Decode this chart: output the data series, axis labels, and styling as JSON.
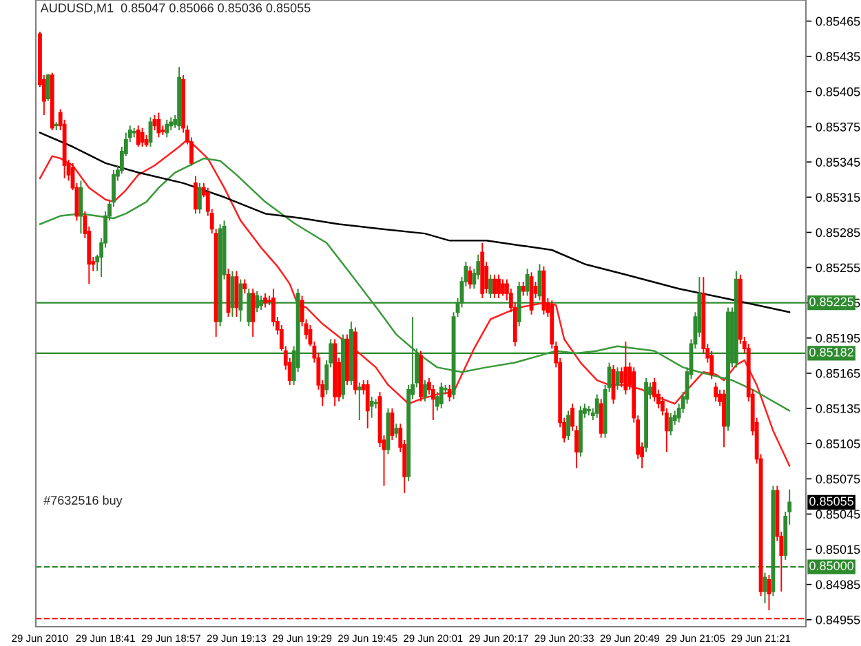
{
  "chart_data": {
    "type": "candlestick",
    "title": "AUDUSD,M1  0.85047 0.85066 0.85036 0.85055",
    "x": [
      "2010-06-29T18:25",
      "2010-06-29T18:26",
      "2010-06-29T18:27",
      "2010-06-29T18:28",
      "2010-06-29T18:29",
      "2010-06-29T18:30",
      "2010-06-29T18:31",
      "2010-06-29T18:32",
      "2010-06-29T18:33",
      "2010-06-29T18:34",
      "2010-06-29T18:35",
      "2010-06-29T18:36",
      "2010-06-29T18:37",
      "2010-06-29T18:38",
      "2010-06-29T18:39",
      "2010-06-29T18:40",
      "2010-06-29T18:41",
      "2010-06-29T18:42",
      "2010-06-29T18:43",
      "2010-06-29T18:44",
      "2010-06-29T18:45",
      "2010-06-29T18:46",
      "2010-06-29T18:47",
      "2010-06-29T18:48",
      "2010-06-29T18:49",
      "2010-06-29T18:50",
      "2010-06-29T18:51",
      "2010-06-29T18:52",
      "2010-06-29T18:53",
      "2010-06-29T18:54",
      "2010-06-29T18:55",
      "2010-06-29T18:56",
      "2010-06-29T18:57",
      "2010-06-29T18:58",
      "2010-06-29T18:59",
      "2010-06-29T19:00",
      "2010-06-29T19:01",
      "2010-06-29T19:02",
      "2010-06-29T19:03",
      "2010-06-29T19:04",
      "2010-06-29T19:05",
      "2010-06-29T19:06",
      "2010-06-29T19:07",
      "2010-06-29T19:08",
      "2010-06-29T19:09",
      "2010-06-29T19:10",
      "2010-06-29T19:11",
      "2010-06-29T19:12",
      "2010-06-29T19:13",
      "2010-06-29T19:14",
      "2010-06-29T19:15",
      "2010-06-29T19:16",
      "2010-06-29T19:17",
      "2010-06-29T19:18",
      "2010-06-29T19:19",
      "2010-06-29T19:20",
      "2010-06-29T19:21",
      "2010-06-29T19:22",
      "2010-06-29T19:23",
      "2010-06-29T19:24",
      "2010-06-29T19:25",
      "2010-06-29T19:26",
      "2010-06-29T19:27",
      "2010-06-29T19:28",
      "2010-06-29T19:29",
      "2010-06-29T19:30",
      "2010-06-29T19:31",
      "2010-06-29T19:32",
      "2010-06-29T19:33",
      "2010-06-29T19:34",
      "2010-06-29T19:35",
      "2010-06-29T19:36",
      "2010-06-29T19:37",
      "2010-06-29T19:38",
      "2010-06-29T19:39",
      "2010-06-29T19:40",
      "2010-06-29T19:41",
      "2010-06-29T19:42",
      "2010-06-29T19:43",
      "2010-06-29T19:44",
      "2010-06-29T19:45",
      "2010-06-29T19:46",
      "2010-06-29T19:47",
      "2010-06-29T19:48",
      "2010-06-29T19:49",
      "2010-06-29T19:50",
      "2010-06-29T19:51",
      "2010-06-29T19:52",
      "2010-06-29T19:53",
      "2010-06-29T19:54",
      "2010-06-29T19:55",
      "2010-06-29T19:56",
      "2010-06-29T19:57",
      "2010-06-29T19:58",
      "2010-06-29T19:59",
      "2010-06-29T20:00",
      "2010-06-29T20:01",
      "2010-06-29T20:02",
      "2010-06-29T20:03",
      "2010-06-29T20:04",
      "2010-06-29T20:05",
      "2010-06-29T20:06",
      "2010-06-29T20:07",
      "2010-06-29T20:08",
      "2010-06-29T20:09",
      "2010-06-29T20:10",
      "2010-06-29T20:11",
      "2010-06-29T20:12",
      "2010-06-29T20:13",
      "2010-06-29T20:14",
      "2010-06-29T20:15",
      "2010-06-29T20:16",
      "2010-06-29T20:17",
      "2010-06-29T20:18",
      "2010-06-29T20:19",
      "2010-06-29T20:20",
      "2010-06-29T20:21",
      "2010-06-29T20:22",
      "2010-06-29T20:23",
      "2010-06-29T20:24",
      "2010-06-29T20:25",
      "2010-06-29T20:26",
      "2010-06-29T20:27",
      "2010-06-29T20:28",
      "2010-06-29T20:29",
      "2010-06-29T20:30",
      "2010-06-29T20:31",
      "2010-06-29T20:32",
      "2010-06-29T20:33",
      "2010-06-29T20:34",
      "2010-06-29T20:35",
      "2010-06-29T20:36",
      "2010-06-29T20:37",
      "2010-06-29T20:38",
      "2010-06-29T20:39",
      "2010-06-29T20:40",
      "2010-06-29T20:41",
      "2010-06-29T20:42",
      "2010-06-29T20:43",
      "2010-06-29T20:44",
      "2010-06-29T20:45",
      "2010-06-29T20:46",
      "2010-06-29T20:47",
      "2010-06-29T20:48",
      "2010-06-29T20:49",
      "2010-06-29T20:50",
      "2010-06-29T20:51",
      "2010-06-29T20:52",
      "2010-06-29T20:53",
      "2010-06-29T20:54",
      "2010-06-29T20:55",
      "2010-06-29T20:56",
      "2010-06-29T20:57",
      "2010-06-29T20:58",
      "2010-06-29T20:59",
      "2010-06-29T21:00",
      "2010-06-29T21:01",
      "2010-06-29T21:02",
      "2010-06-29T21:03",
      "2010-06-29T21:04",
      "2010-06-29T21:05",
      "2010-06-29T21:06",
      "2010-06-29T21:07",
      "2010-06-29T21:08",
      "2010-06-29T21:09",
      "2010-06-29T21:10",
      "2010-06-29T21:11",
      "2010-06-29T21:12",
      "2010-06-29T21:13",
      "2010-06-29T21:14",
      "2010-06-29T21:15",
      "2010-06-29T21:16",
      "2010-06-29T21:17",
      "2010-06-29T21:18",
      "2010-06-29T21:19",
      "2010-06-29T21:20",
      "2010-06-29T21:21",
      "2010-06-29T21:22",
      "2010-06-29T21:23",
      "2010-06-29T21:24",
      "2010-06-29T21:25",
      "2010-06-29T21:26",
      "2010-06-29T21:27",
      "2010-06-29T21:28"
    ],
    "ohlc": [
      [
        0.85454,
        0.85456,
        0.85409,
        0.85411
      ],
      [
        0.85415,
        0.85419,
        0.85385,
        0.85397
      ],
      [
        0.85399,
        0.8542,
        0.85397,
        0.85419
      ],
      [
        0.85419,
        0.85421,
        0.85372,
        0.85374
      ],
      [
        0.85376,
        0.85379,
        0.85372,
        0.85377
      ],
      [
        0.85387,
        0.8539,
        0.85372,
        0.85376
      ],
      [
        0.85377,
        0.85381,
        0.85331,
        0.85342
      ],
      [
        0.85344,
        0.85347,
        0.85329,
        0.85334
      ],
      [
        0.8534,
        0.85344,
        0.85321,
        0.85323
      ],
      [
        0.85323,
        0.85327,
        0.85295,
        0.85299
      ],
      [
        0.85299,
        0.85329,
        0.85284,
        0.85323
      ],
      [
        0.85299,
        0.85303,
        0.8528,
        0.85284
      ],
      [
        0.85286,
        0.8529,
        0.85241,
        0.85258
      ],
      [
        0.8526,
        0.85264,
        0.85252,
        0.85258
      ],
      [
        0.8526,
        0.85266,
        0.85252,
        0.85264
      ],
      [
        0.85264,
        0.8528,
        0.85247,
        0.85276
      ],
      [
        0.85276,
        0.85303,
        0.85272,
        0.85299
      ],
      [
        0.85299,
        0.85313,
        0.85295,
        0.85309
      ],
      [
        0.85311,
        0.85338,
        0.85307,
        0.85334
      ],
      [
        0.85333,
        0.85342,
        0.85329,
        0.85338
      ],
      [
        0.85338,
        0.85358,
        0.85335,
        0.85354
      ],
      [
        0.85352,
        0.8537,
        0.8535,
        0.85364
      ],
      [
        0.85366,
        0.85376,
        0.85362,
        0.85372
      ],
      [
        0.8537,
        0.85374,
        0.85366,
        0.85371
      ],
      [
        0.85372,
        0.85376,
        0.85358,
        0.8536
      ],
      [
        0.8537,
        0.85374,
        0.85358,
        0.85362
      ],
      [
        0.85364,
        0.85368,
        0.85358,
        0.8536
      ],
      [
        0.85362,
        0.85383,
        0.85358,
        0.85379
      ],
      [
        0.85381,
        0.85385,
        0.85372,
        0.85376
      ],
      [
        0.85381,
        0.85387,
        0.85366,
        0.8537
      ],
      [
        0.85372,
        0.85376,
        0.85368,
        0.85371
      ],
      [
        0.8537,
        0.85381,
        0.85366,
        0.85377
      ],
      [
        0.85376,
        0.85383,
        0.85372,
        0.85379
      ],
      [
        0.85377,
        0.85385,
        0.85374,
        0.85381
      ],
      [
        0.85376,
        0.85426,
        0.85372,
        0.85417
      ],
      [
        0.85415,
        0.85419,
        0.8537,
        0.85374
      ],
      [
        0.85372,
        0.85376,
        0.8536,
        0.85362
      ],
      [
        0.85362,
        0.85366,
        0.85342,
        0.85344
      ],
      [
        0.85327,
        0.85333,
        0.85301,
        0.85305
      ],
      [
        0.85305,
        0.85327,
        0.85301,
        0.85323
      ],
      [
        0.85323,
        0.85327,
        0.85315,
        0.85317
      ],
      [
        0.85319,
        0.85323,
        0.85299,
        0.85303
      ],
      [
        0.85301,
        0.85305,
        0.85284,
        0.85288
      ],
      [
        0.85284,
        0.85288,
        0.85196,
        0.85209
      ],
      [
        0.85209,
        0.85292,
        0.85205,
        0.85288
      ],
      [
        0.85249,
        0.85295,
        0.85245,
        0.8529
      ],
      [
        0.85249,
        0.85254,
        0.85213,
        0.85217
      ],
      [
        0.85221,
        0.85252,
        0.85213,
        0.85247
      ],
      [
        0.85247,
        0.85252,
        0.85213,
        0.85221
      ],
      [
        0.85219,
        0.85245,
        0.85209,
        0.85241
      ],
      [
        0.85241,
        0.85245,
        0.85233,
        0.85237
      ],
      [
        0.85209,
        0.85237,
        0.85205,
        0.85233
      ],
      [
        0.85233,
        0.85237,
        0.85196,
        0.85209
      ],
      [
        0.85221,
        0.85235,
        0.85217,
        0.85231
      ],
      [
        0.85223,
        0.85231,
        0.85219,
        0.85227
      ],
      [
        0.85229,
        0.85233,
        0.85221,
        0.85225
      ],
      [
        0.85227,
        0.85231,
        0.85223,
        0.85226
      ],
      [
        0.85229,
        0.85237,
        0.85205,
        0.85209
      ],
      [
        0.85209,
        0.85213,
        0.85198,
        0.85202
      ],
      [
        0.85202,
        0.85206,
        0.85184,
        0.85186
      ],
      [
        0.85184,
        0.85188,
        0.85168,
        0.85172
      ],
      [
        0.85174,
        0.85178,
        0.85155,
        0.85159
      ],
      [
        0.85159,
        0.85188,
        0.85155,
        0.85184
      ],
      [
        0.8517,
        0.85237,
        0.85166,
        0.85233
      ],
      [
        0.85227,
        0.85231,
        0.85205,
        0.85209
      ],
      [
        0.85207,
        0.85211,
        0.85194,
        0.85198
      ],
      [
        0.85202,
        0.85206,
        0.85188,
        0.8519
      ],
      [
        0.85188,
        0.85192,
        0.85174,
        0.85178
      ],
      [
        0.85178,
        0.85182,
        0.85151,
        0.85155
      ],
      [
        0.85155,
        0.85159,
        0.85137,
        0.85145
      ],
      [
        0.85151,
        0.85176,
        0.85147,
        0.85172
      ],
      [
        0.85174,
        0.85194,
        0.8517,
        0.8519
      ],
      [
        0.8519,
        0.85194,
        0.85137,
        0.85145
      ],
      [
        0.85174,
        0.85178,
        0.85141,
        0.85145
      ],
      [
        0.85147,
        0.85198,
        0.85143,
        0.85194
      ],
      [
        0.85194,
        0.85198,
        0.85155,
        0.85159
      ],
      [
        0.85159,
        0.85209,
        0.85155,
        0.85202
      ],
      [
        0.852,
        0.85204,
        0.85147,
        0.85151
      ],
      [
        0.85151,
        0.85157,
        0.85125,
        0.85153
      ],
      [
        0.85155,
        0.85159,
        0.85147,
        0.85151
      ],
      [
        0.85155,
        0.85159,
        0.85118,
        0.85133
      ],
      [
        0.85137,
        0.85145,
        0.85127,
        0.85141
      ],
      [
        0.85139,
        0.85143,
        0.85135,
        0.8514
      ],
      [
        0.85145,
        0.85149,
        0.85102,
        0.85106
      ],
      [
        0.85108,
        0.85112,
        0.85069,
        0.851
      ],
      [
        0.851,
        0.85135,
        0.85096,
        0.85131
      ],
      [
        0.85131,
        0.85135,
        0.85108,
        0.85112
      ],
      [
        0.85114,
        0.85122,
        0.8511,
        0.85118
      ],
      [
        0.85118,
        0.85122,
        0.85098,
        0.85102
      ],
      [
        0.85104,
        0.85108,
        0.85063,
        0.85077
      ],
      [
        0.85077,
        0.85155,
        0.85073,
        0.85151
      ],
      [
        0.85147,
        0.85213,
        0.85143,
        0.85155
      ],
      [
        0.85157,
        0.85186,
        0.85153,
        0.85182
      ],
      [
        0.8518,
        0.85184,
        0.85141,
        0.85145
      ],
      [
        0.85145,
        0.85159,
        0.85141,
        0.85155
      ],
      [
        0.85157,
        0.85161,
        0.85147,
        0.85151
      ],
      [
        0.85151,
        0.85155,
        0.85125,
        0.85143
      ],
      [
        0.85137,
        0.85149,
        0.85133,
        0.85145
      ],
      [
        0.85139,
        0.85157,
        0.85135,
        0.85153
      ],
      [
        0.85151,
        0.85155,
        0.85147,
        0.85152
      ],
      [
        0.85151,
        0.85155,
        0.85141,
        0.85145
      ],
      [
        0.85147,
        0.85217,
        0.85143,
        0.85213
      ],
      [
        0.85217,
        0.85229,
        0.85213,
        0.85225
      ],
      [
        0.85225,
        0.85247,
        0.85221,
        0.85243
      ],
      [
        0.85243,
        0.8526,
        0.85239,
        0.85256
      ],
      [
        0.85252,
        0.85256,
        0.85237,
        0.85241
      ],
      [
        0.85241,
        0.85254,
        0.85237,
        0.8525
      ],
      [
        0.85249,
        0.85266,
        0.85245,
        0.8526
      ],
      [
        0.85268,
        0.85276,
        0.85229,
        0.85233
      ],
      [
        0.85256,
        0.8526,
        0.85233,
        0.85237
      ],
      [
        0.85233,
        0.85249,
        0.85229,
        0.85245
      ],
      [
        0.85245,
        0.85249,
        0.85229,
        0.85233
      ],
      [
        0.85245,
        0.85249,
        0.85229,
        0.85233
      ],
      [
        0.85241,
        0.85245,
        0.85231,
        0.85233
      ],
      [
        0.85241,
        0.85245,
        0.85227,
        0.85233
      ],
      [
        0.85233,
        0.85237,
        0.85217,
        0.85221
      ],
      [
        0.85221,
        0.85225,
        0.85188,
        0.85192
      ],
      [
        0.85209,
        0.85243,
        0.85205,
        0.85239
      ],
      [
        0.85239,
        0.85243,
        0.85231,
        0.85235
      ],
      [
        0.85235,
        0.85254,
        0.85231,
        0.85249
      ],
      [
        0.85247,
        0.85251,
        0.85215,
        0.85219
      ],
      [
        0.85239,
        0.85243,
        0.85229,
        0.85233
      ],
      [
        0.85231,
        0.85258,
        0.85227,
        0.85252
      ],
      [
        0.85252,
        0.85256,
        0.85215,
        0.85219
      ],
      [
        0.85225,
        0.85229,
        0.85213,
        0.85217
      ],
      [
        0.85223,
        0.85227,
        0.85186,
        0.8519
      ],
      [
        0.85188,
        0.85192,
        0.8517,
        0.85174
      ],
      [
        0.85174,
        0.85178,
        0.85119,
        0.85123
      ],
      [
        0.85123,
        0.85127,
        0.85106,
        0.8511
      ],
      [
        0.85112,
        0.85133,
        0.85108,
        0.85129
      ],
      [
        0.85135,
        0.85139,
        0.85116,
        0.8512
      ],
      [
        0.85116,
        0.8512,
        0.85084,
        0.85098
      ],
      [
        0.85098,
        0.85137,
        0.85094,
        0.85133
      ],
      [
        0.85131,
        0.85139,
        0.85127,
        0.85135
      ],
      [
        0.85133,
        0.85137,
        0.85129,
        0.85134
      ],
      [
        0.85129,
        0.85135,
        0.85125,
        0.85131
      ],
      [
        0.85131,
        0.85147,
        0.85127,
        0.85143
      ],
      [
        0.85139,
        0.85143,
        0.8511,
        0.85114
      ],
      [
        0.85114,
        0.85155,
        0.8511,
        0.85151
      ],
      [
        0.85153,
        0.85174,
        0.85149,
        0.8517
      ],
      [
        0.85168,
        0.85172,
        0.85139,
        0.85143
      ],
      [
        0.85155,
        0.8517,
        0.85151,
        0.85166
      ],
      [
        0.85166,
        0.8517,
        0.85153,
        0.85157
      ],
      [
        0.8517,
        0.85192,
        0.85147,
        0.85151
      ],
      [
        0.8517,
        0.85174,
        0.85151,
        0.85155
      ],
      [
        0.85166,
        0.8517,
        0.85123,
        0.85127
      ],
      [
        0.85125,
        0.85129,
        0.85092,
        0.85096
      ],
      [
        0.85102,
        0.85106,
        0.85084,
        0.85094
      ],
      [
        0.85102,
        0.85161,
        0.85098,
        0.85157
      ],
      [
        0.85147,
        0.85157,
        0.85143,
        0.85153
      ],
      [
        0.85157,
        0.85161,
        0.85141,
        0.85145
      ],
      [
        0.85147,
        0.85151,
        0.85135,
        0.85139
      ],
      [
        0.85141,
        0.85145,
        0.85129,
        0.85133
      ],
      [
        0.85131,
        0.85135,
        0.85098,
        0.85116
      ],
      [
        0.85116,
        0.85131,
        0.85112,
        0.85127
      ],
      [
        0.85125,
        0.85133,
        0.85121,
        0.85129
      ],
      [
        0.85127,
        0.85139,
        0.85123,
        0.85135
      ],
      [
        0.85135,
        0.85149,
        0.85131,
        0.85145
      ],
      [
        0.85143,
        0.8517,
        0.85139,
        0.85166
      ],
      [
        0.85164,
        0.85194,
        0.8516,
        0.8519
      ],
      [
        0.8519,
        0.85217,
        0.85186,
        0.85213
      ],
      [
        0.852,
        0.85247,
        0.85196,
        0.85233
      ],
      [
        0.85233,
        0.85247,
        0.85182,
        0.85186
      ],
      [
        0.85186,
        0.8519,
        0.85174,
        0.85178
      ],
      [
        0.8518,
        0.85184,
        0.8516,
        0.85164
      ],
      [
        0.85153,
        0.85157,
        0.85141,
        0.85145
      ],
      [
        0.85147,
        0.85151,
        0.85137,
        0.85141
      ],
      [
        0.85147,
        0.85151,
        0.85102,
        0.8512
      ],
      [
        0.8512,
        0.85221,
        0.85116,
        0.85217
      ],
      [
        0.85174,
        0.85221,
        0.8517,
        0.85217
      ],
      [
        0.85174,
        0.85252,
        0.8517,
        0.85245
      ],
      [
        0.85245,
        0.85249,
        0.8519,
        0.85194
      ],
      [
        0.85192,
        0.85196,
        0.85182,
        0.85186
      ],
      [
        0.85186,
        0.8519,
        0.85141,
        0.85145
      ],
      [
        0.85147,
        0.85151,
        0.85112,
        0.85116
      ],
      [
        0.85123,
        0.85127,
        0.85088,
        0.85092
      ],
      [
        0.85092,
        0.85096,
        0.84975,
        0.84979
      ],
      [
        0.84979,
        0.84995,
        0.84969,
        0.84991
      ],
      [
        0.84989,
        0.84993,
        0.84963,
        0.84977
      ],
      [
        0.84979,
        0.85069,
        0.84975,
        0.85065
      ],
      [
        0.85065,
        0.85069,
        0.85022,
        0.85026
      ],
      [
        0.85026,
        0.8503,
        0.84979,
        0.8501
      ],
      [
        0.8501,
        0.85047,
        0.85006,
        0.85043
      ],
      [
        0.85047,
        0.85066,
        0.85036,
        0.85055
      ]
    ],
    "colors": [
      "#ff0000",
      "#ff0000",
      "#2e8b2e",
      "#ff0000",
      "#2e8b2e",
      "#ff0000",
      "#ff0000",
      "#ff0000",
      "#ff0000",
      "#ff0000",
      "#2e8b2e",
      "#ff0000",
      "#ff0000",
      "#ff0000",
      "#2e8b2e",
      "#2e8b2e",
      "#2e8b2e",
      "#2e8b2e",
      "#2e8b2e",
      "#2e8b2e",
      "#2e8b2e",
      "#2e8b2e",
      "#2e8b2e",
      "#2e8b2e",
      "#ff0000",
      "#ff0000",
      "#ff0000",
      "#2e8b2e",
      "#ff0000",
      "#ff0000",
      "#ff0000",
      "#2e8b2e",
      "#2e8b2e",
      "#2e8b2e",
      "#2e8b2e",
      "#ff0000",
      "#ff0000",
      "#ff0000",
      "#ff0000",
      "#2e8b2e",
      "#ff0000",
      "#ff0000",
      "#ff0000",
      "#ff0000",
      "#2e8b2e",
      "#2e8b2e",
      "#ff0000",
      "#2e8b2e",
      "#ff0000",
      "#2e8b2e",
      "#ff0000",
      "#2e8b2e",
      "#ff0000",
      "#2e8b2e",
      "#2e8b2e",
      "#ff0000",
      "#ff0000",
      "#ff0000",
      "#ff0000",
      "#ff0000",
      "#ff0000",
      "#ff0000",
      "#2e8b2e",
      "#2e8b2e",
      "#ff0000",
      "#ff0000",
      "#ff0000",
      "#ff0000",
      "#ff0000",
      "#ff0000",
      "#2e8b2e",
      "#2e8b2e",
      "#ff0000",
      "#ff0000",
      "#2e8b2e",
      "#ff0000",
      "#2e8b2e",
      "#ff0000",
      "#2e8b2e",
      "#ff0000",
      "#ff0000",
      "#2e8b2e",
      "#2e8b2e",
      "#ff0000",
      "#ff0000",
      "#2e8b2e",
      "#ff0000",
      "#2e8b2e",
      "#ff0000",
      "#ff0000",
      "#2e8b2e",
      "#2e8b2e",
      "#2e8b2e",
      "#ff0000",
      "#2e8b2e",
      "#ff0000",
      "#ff0000",
      "#2e8b2e",
      "#2e8b2e",
      "#2e8b2e",
      "#ff0000",
      "#2e8b2e",
      "#2e8b2e",
      "#2e8b2e",
      "#2e8b2e",
      "#ff0000",
      "#2e8b2e",
      "#2e8b2e",
      "#ff0000",
      "#ff0000",
      "#2e8b2e",
      "#ff0000",
      "#ff0000",
      "#ff0000",
      "#ff0000",
      "#ff0000",
      "#ff0000",
      "#2e8b2e",
      "#ff0000",
      "#2e8b2e",
      "#ff0000",
      "#ff0000",
      "#2e8b2e",
      "#ff0000",
      "#ff0000",
      "#ff0000",
      "#ff0000",
      "#ff0000",
      "#ff0000",
      "#2e8b2e",
      "#ff0000",
      "#ff0000",
      "#2e8b2e",
      "#2e8b2e",
      "#2e8b2e",
      "#2e8b2e",
      "#2e8b2e",
      "#ff0000",
      "#2e8b2e",
      "#2e8b2e",
      "#ff0000",
      "#2e8b2e",
      "#ff0000",
      "#ff0000",
      "#ff0000",
      "#ff0000",
      "#ff0000",
      "#ff0000",
      "#2e8b2e",
      "#2e8b2e",
      "#ff0000",
      "#ff0000",
      "#ff0000",
      "#ff0000",
      "#2e8b2e",
      "#2e8b2e",
      "#2e8b2e",
      "#2e8b2e",
      "#2e8b2e",
      "#2e8b2e",
      "#2e8b2e",
      "#2e8b2e",
      "#ff0000",
      "#ff0000",
      "#ff0000",
      "#ff0000",
      "#ff0000",
      "#ff0000",
      "#2e8b2e",
      "#2e8b2e",
      "#2e8b2e",
      "#ff0000",
      "#ff0000",
      "#ff0000",
      "#ff0000",
      "#ff0000",
      "#ff0000",
      "#2e8b2e",
      "#ff0000",
      "#2e8b2e",
      "#ff0000",
      "#ff0000",
      "#2e8b2e",
      "#2e8b2e"
    ],
    "series": [
      {
        "type": "line",
        "color": "#ff2020",
        "x": [
          "2010-06-29T18:25",
          "2010-06-29T18:28",
          "2010-06-29T18:30",
          "2010-06-29T18:33",
          "2010-06-29T18:37",
          "2010-06-29T18:41",
          "2010-06-29T18:43",
          "2010-06-29T18:46",
          "2010-06-29T18:49",
          "2010-06-29T18:53",
          "2010-06-29T18:56",
          "2010-06-29T18:59",
          "2010-06-29T19:01",
          "2010-06-29T19:03",
          "2010-06-29T19:06",
          "2010-06-29T19:10",
          "2010-06-29T19:14",
          "2010-06-29T19:19",
          "2010-06-29T19:23",
          "2010-06-29T19:26",
          "2010-06-29T19:28",
          "2010-06-29T19:30",
          "2010-06-29T19:34",
          "2010-06-29T19:38",
          "2010-06-29T19:43",
          "2010-06-29T19:47",
          "2010-06-29T19:50",
          "2010-06-29T19:55",
          "2010-06-29T19:58",
          "2010-06-29T20:02",
          "2010-06-29T20:06",
          "2010-06-29T20:11",
          "2010-06-29T20:15",
          "2010-06-29T20:19",
          "2010-06-29T20:22",
          "2010-06-29T20:28",
          "2010-06-29T20:31",
          "2010-06-29T20:33",
          "2010-06-29T20:37",
          "2010-06-29T20:41",
          "2010-06-29T20:44",
          "2010-06-29T20:48",
          "2010-06-29T20:52",
          "2010-06-29T20:57",
          "2010-06-29T21:00",
          "2010-06-29T21:02",
          "2010-06-29T21:07",
          "2010-06-29T21:10",
          "2010-06-29T21:12",
          "2010-06-29T21:15",
          "2010-06-29T21:17",
          "2010-06-29T21:20",
          "2010-06-29T21:24",
          "2010-06-29T21:28"
        ],
        "values": [
          0.85331,
          0.8535,
          0.85348,
          0.85342,
          0.85323,
          0.85313,
          0.85311,
          0.85321,
          0.85334,
          0.85342,
          0.8535,
          0.85358,
          0.85364,
          0.85358,
          0.85348,
          0.85323,
          0.85295,
          0.85272,
          0.85256,
          0.85241,
          0.85223,
          0.85221,
          0.85207,
          0.85196,
          0.85182,
          0.8517,
          0.85155,
          0.85139,
          0.85143,
          0.85147,
          0.85149,
          0.85186,
          0.85211,
          0.85217,
          0.85221,
          0.85225,
          0.85223,
          0.85194,
          0.85174,
          0.85159,
          0.85155,
          0.85155,
          0.85151,
          0.85143,
          0.85139,
          0.85147,
          0.85166,
          0.85164,
          0.85159,
          0.85172,
          0.85176,
          0.85155,
          0.85116,
          0.85086
        ]
      },
      {
        "type": "line",
        "color": "#3a9a3a",
        "x": [
          "2010-06-29T18:25",
          "2010-06-29T18:30",
          "2010-06-29T18:35",
          "2010-06-29T18:43",
          "2010-06-29T18:46",
          "2010-06-29T18:51",
          "2010-06-29T18:54",
          "2010-06-29T18:58",
          "2010-06-29T19:05",
          "2010-06-29T19:09",
          "2010-06-29T19:13",
          "2010-06-29T19:20",
          "2010-06-29T19:27",
          "2010-06-29T19:35",
          "2010-06-29T19:41",
          "2010-06-29T19:48",
          "2010-06-29T19:52",
          "2010-06-29T19:58",
          "2010-06-29T20:02",
          "2010-06-29T20:08",
          "2010-06-29T20:14",
          "2010-06-29T20:21",
          "2010-06-29T20:27",
          "2010-06-29T20:31",
          "2010-06-29T20:36",
          "2010-06-29T20:41",
          "2010-06-29T20:46",
          "2010-06-29T20:55",
          "2010-06-29T21:02",
          "2010-06-29T21:06",
          "2010-06-29T21:14",
          "2010-06-29T21:19",
          "2010-06-29T21:28"
        ],
        "values": [
          0.85292,
          0.85299,
          0.85301,
          0.85297,
          0.85301,
          0.85311,
          0.85323,
          0.85336,
          0.85348,
          0.85346,
          0.85334,
          0.85311,
          0.85293,
          0.85276,
          0.85249,
          0.85217,
          0.85198,
          0.8518,
          0.8517,
          0.85166,
          0.8517,
          0.85174,
          0.8518,
          0.85184,
          0.85182,
          0.85184,
          0.85188,
          0.85184,
          0.8517,
          0.85166,
          0.85159,
          0.85151,
          0.85133
        ]
      },
      {
        "type": "line",
        "color": "#000000",
        "x": [
          "2010-06-29T18:25",
          "2010-06-29T18:33",
          "2010-06-29T18:41",
          "2010-06-29T18:49",
          "2010-06-29T19:00",
          "2010-06-29T19:10",
          "2010-06-29T19:20",
          "2010-06-29T19:29",
          "2010-06-29T19:38",
          "2010-06-29T19:48",
          "2010-06-29T19:59",
          "2010-06-29T20:05",
          "2010-06-29T20:14",
          "2010-06-29T20:22",
          "2010-06-29T20:30",
          "2010-06-29T20:38",
          "2010-06-29T20:48",
          "2010-06-29T21:01",
          "2010-06-29T21:12",
          "2010-06-29T21:20",
          "2010-06-29T21:28"
        ],
        "values": [
          0.8537,
          0.85358,
          0.85344,
          0.85336,
          0.85327,
          0.85315,
          0.85301,
          0.85297,
          0.85292,
          0.85288,
          0.85284,
          0.85278,
          0.85278,
          0.85274,
          0.8527,
          0.85258,
          0.85249,
          0.85237,
          0.85229,
          0.85223,
          0.85217
        ]
      }
    ],
    "xlim": [
      "2010-06-29T18:24",
      "2010-06-29T21:32"
    ],
    "xticks": [
      {
        "value": "2010-06-29T18:25",
        "label": "29 Jun 2010"
      },
      {
        "value": "2010-06-29T18:41",
        "label": "29 Jun 18:41"
      },
      {
        "value": "2010-06-29T18:57",
        "label": "29 Jun 18:57"
      },
      {
        "value": "2010-06-29T19:13",
        "label": "29 Jun 19:13"
      },
      {
        "value": "2010-06-29T19:29",
        "label": "29 Jun 19:29"
      },
      {
        "value": "2010-06-29T19:45",
        "label": "29 Jun 19:45"
      },
      {
        "value": "2010-06-29T20:01",
        "label": "29 Jun 20:01"
      },
      {
        "value": "2010-06-29T20:17",
        "label": "29 Jun 20:17"
      },
      {
        "value": "2010-06-29T20:33",
        "label": "29 Jun 20:33"
      },
      {
        "value": "2010-06-29T20:49",
        "label": "29 Jun 20:49"
      },
      {
        "value": "2010-06-29T21:05",
        "label": "29 Jun 21:05"
      },
      {
        "value": "2010-06-29T21:21",
        "label": "29 Jun 21:21"
      }
    ],
    "ylim": [
      0.84949,
      0.85483
    ],
    "yticks": [
      0.85465,
      0.85435,
      0.85405,
      0.85375,
      0.85345,
      0.85315,
      0.85285,
      0.85255,
      0.85225,
      0.85195,
      0.85165,
      0.85135,
      0.85105,
      0.85075,
      0.85045,
      0.85015,
      0.84985,
      0.84955
    ],
    "ref_lines": [
      {
        "axis": "y",
        "value": 0.85225,
        "label": "0.85225",
        "color": "#2e8b2e",
        "line_style": "solid"
      },
      {
        "axis": "y",
        "value": 0.85182,
        "label": "0.85182",
        "color": "#2e8b2e",
        "line_style": "solid"
      },
      {
        "axis": "y",
        "value": 0.85,
        "label": "0.85000",
        "color": "#2e8b2e",
        "line_style": "dashed"
      },
      {
        "axis": "y",
        "value": 0.84956,
        "color": "#ff0000",
        "line_style": "dashed"
      }
    ],
    "annotations": [
      "#7632516 buy",
      "0.85055"
    ],
    "grid": false,
    "legend": false
  }
}
